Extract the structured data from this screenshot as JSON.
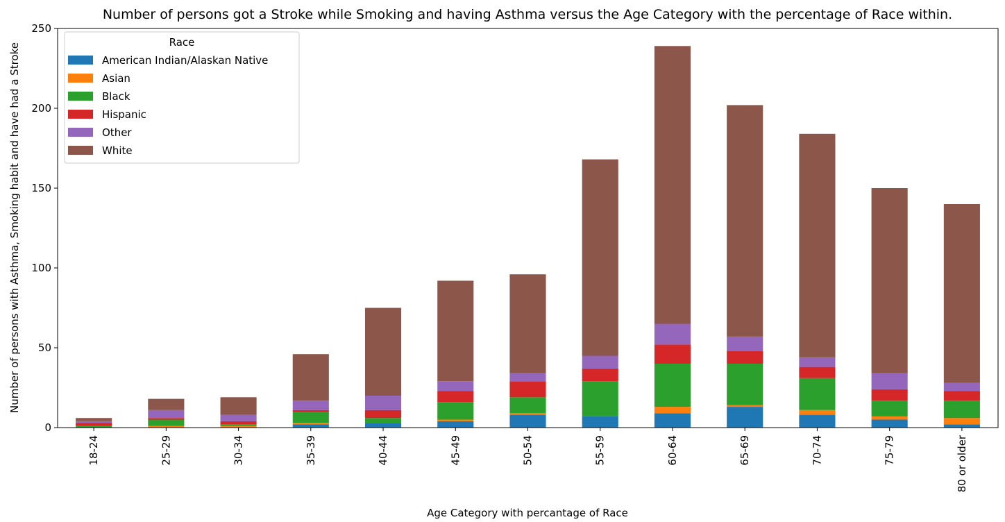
{
  "chart_data": {
    "type": "bar",
    "stacked": true,
    "title": "Number of persons got a Stroke while Smoking and having Asthma versus the Age Category with the percentage of Race within.",
    "xlabel": "Age Category with percantage of Race",
    "ylabel": "Number of persons with Asthma, Smoking habit and have had a Stroke",
    "ylim": [
      0,
      250
    ],
    "yticks": [
      0,
      50,
      100,
      150,
      200,
      250
    ],
    "grid": false,
    "legend": {
      "title": "Race",
      "placement": "top-left"
    },
    "categories": [
      "18-24",
      "25-29",
      "30-34",
      "35-39",
      "40-44",
      "45-49",
      "50-54",
      "55-59",
      "60-64",
      "65-69",
      "70-74",
      "75-79",
      "80 or older"
    ],
    "series": [
      {
        "name": "American Indian/Alaskan Native",
        "color": "#1f77b4",
        "values": [
          0,
          0,
          0,
          2,
          3,
          4,
          8,
          7,
          9,
          13,
          8,
          5,
          2
        ]
      },
      {
        "name": "Asian",
        "color": "#ff7f0e",
        "values": [
          0,
          1,
          1,
          1,
          0,
          1,
          1,
          0,
          4,
          1,
          3,
          2,
          4
        ]
      },
      {
        "name": "Black",
        "color": "#2ca02c",
        "values": [
          1,
          4,
          1,
          7,
          3,
          11,
          10,
          22,
          27,
          26,
          20,
          10,
          11
        ]
      },
      {
        "name": "Hispanic",
        "color": "#d62728",
        "values": [
          2,
          1,
          2,
          1,
          5,
          7,
          10,
          8,
          12,
          8,
          7,
          7,
          6
        ]
      },
      {
        "name": "Other",
        "color": "#9467bd",
        "values": [
          1,
          5,
          4,
          6,
          9,
          6,
          5,
          8,
          13,
          9,
          6,
          10,
          5
        ]
      },
      {
        "name": "White",
        "color": "#8c564b",
        "values": [
          2,
          7,
          11,
          29,
          55,
          63,
          62,
          123,
          174,
          145,
          140,
          116,
          112
        ]
      }
    ]
  }
}
